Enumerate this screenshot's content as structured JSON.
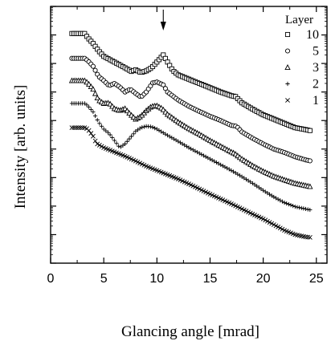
{
  "chart_data": {
    "type": "scatter",
    "xlabel": "Glancing angle [mrad]",
    "ylabel": "Intensity [arb. units]",
    "xlim": [
      0,
      26
    ],
    "x_ticks": [
      "0",
      "5",
      "10",
      "15",
      "20",
      "25"
    ],
    "y_scale": "log",
    "legend_title": "Layer",
    "legend_position": "top-right",
    "annotation": {
      "type": "arrow",
      "x": 10.6,
      "series": "10"
    },
    "series": [
      {
        "name": "10",
        "marker": "square",
        "points": [
          [
            2,
            9.05
          ],
          [
            3.2,
            9.05
          ],
          [
            3.5,
            8.9
          ],
          [
            4,
            8.7
          ],
          [
            4.5,
            8.45
          ],
          [
            5,
            8.25
          ],
          [
            6,
            8.05
          ],
          [
            7,
            7.85
          ],
          [
            7.6,
            7.72
          ],
          [
            8,
            7.78
          ],
          [
            8.5,
            7.68
          ],
          [
            9,
            7.74
          ],
          [
            9.5,
            7.85
          ],
          [
            10,
            8.05
          ],
          [
            10.6,
            8.3
          ],
          [
            11,
            8.05
          ],
          [
            11.5,
            7.75
          ],
          [
            12,
            7.6
          ],
          [
            13,
            7.45
          ],
          [
            14,
            7.3
          ],
          [
            15,
            7.15
          ],
          [
            16,
            7.0
          ],
          [
            17,
            6.87
          ],
          [
            17.4,
            6.84
          ],
          [
            18,
            6.62
          ],
          [
            19,
            6.4
          ],
          [
            20,
            6.2
          ],
          [
            21,
            6.05
          ],
          [
            22,
            5.9
          ],
          [
            23,
            5.75
          ],
          [
            24,
            5.68
          ],
          [
            24.5,
            5.64
          ]
        ]
      },
      {
        "name": "5",
        "marker": "circle",
        "points": [
          [
            2,
            8.18
          ],
          [
            3.2,
            8.18
          ],
          [
            3.5,
            8.1
          ],
          [
            4,
            7.9
          ],
          [
            4.5,
            7.55
          ],
          [
            5,
            7.4
          ],
          [
            5.5,
            7.22
          ],
          [
            6,
            7.3
          ],
          [
            6.5,
            7.18
          ],
          [
            7,
            7.0
          ],
          [
            7.5,
            7.1
          ],
          [
            8,
            6.95
          ],
          [
            8.5,
            6.82
          ],
          [
            9,
            7.0
          ],
          [
            9.6,
            7.32
          ],
          [
            10,
            7.35
          ],
          [
            10.6,
            7.25
          ],
          [
            11,
            7.0
          ],
          [
            12,
            6.72
          ],
          [
            13,
            6.5
          ],
          [
            14,
            6.32
          ],
          [
            15,
            6.15
          ],
          [
            16,
            6.0
          ],
          [
            17,
            5.83
          ],
          [
            17.5,
            5.8
          ],
          [
            18,
            5.6
          ],
          [
            19,
            5.38
          ],
          [
            20,
            5.18
          ],
          [
            21,
            5.0
          ],
          [
            22,
            4.88
          ],
          [
            23,
            4.73
          ],
          [
            24,
            4.62
          ],
          [
            24.5,
            4.58
          ]
        ]
      },
      {
        "name": "3",
        "marker": "triangle",
        "points": [
          [
            2,
            7.4
          ],
          [
            3.2,
            7.4
          ],
          [
            3.5,
            7.32
          ],
          [
            4,
            7.1
          ],
          [
            4.5,
            6.72
          ],
          [
            5,
            6.6
          ],
          [
            5.5,
            6.62
          ],
          [
            6,
            6.42
          ],
          [
            6.5,
            6.35
          ],
          [
            7,
            6.42
          ],
          [
            7.5,
            6.22
          ],
          [
            8,
            6.05
          ],
          [
            8.5,
            6.15
          ],
          [
            9,
            6.35
          ],
          [
            9.5,
            6.5
          ],
          [
            10,
            6.52
          ],
          [
            10.5,
            6.42
          ],
          [
            11,
            6.22
          ],
          [
            12,
            5.95
          ],
          [
            13,
            5.72
          ],
          [
            14,
            5.52
          ],
          [
            15,
            5.3
          ],
          [
            16,
            5.1
          ],
          [
            17,
            4.9
          ],
          [
            17.3,
            4.85
          ],
          [
            18,
            4.65
          ],
          [
            19,
            4.42
          ],
          [
            20,
            4.22
          ],
          [
            21,
            4.05
          ],
          [
            22,
            3.92
          ],
          [
            23,
            3.8
          ],
          [
            24,
            3.72
          ],
          [
            24.5,
            3.68
          ]
        ]
      },
      {
        "name": "2",
        "marker": "plus",
        "points": [
          [
            2,
            6.6
          ],
          [
            3.2,
            6.6
          ],
          [
            3.5,
            6.52
          ],
          [
            4,
            6.3
          ],
          [
            4.5,
            5.95
          ],
          [
            5,
            5.7
          ],
          [
            5.5,
            5.55
          ],
          [
            6,
            5.3
          ],
          [
            6.5,
            5.05
          ],
          [
            7,
            5.18
          ],
          [
            7.5,
            5.4
          ],
          [
            8,
            5.62
          ],
          [
            8.5,
            5.75
          ],
          [
            9,
            5.8
          ],
          [
            9.5,
            5.78
          ],
          [
            10,
            5.7
          ],
          [
            11,
            5.48
          ],
          [
            12,
            5.27
          ],
          [
            13,
            5.05
          ],
          [
            14,
            4.85
          ],
          [
            15,
            4.65
          ],
          [
            16,
            4.45
          ],
          [
            17,
            4.25
          ],
          [
            18,
            4.03
          ],
          [
            19,
            3.8
          ],
          [
            20,
            3.55
          ],
          [
            21,
            3.32
          ],
          [
            22,
            3.12
          ],
          [
            23,
            2.98
          ],
          [
            24,
            2.9
          ],
          [
            24.5,
            2.86
          ]
        ]
      },
      {
        "name": "1",
        "marker": "cross",
        "points": [
          [
            2,
            5.75
          ],
          [
            3.2,
            5.75
          ],
          [
            3.5,
            5.7
          ],
          [
            4,
            5.45
          ],
          [
            4.3,
            5.2
          ],
          [
            5,
            5.05
          ],
          [
            6,
            4.9
          ],
          [
            7,
            4.75
          ],
          [
            8,
            4.58
          ],
          [
            9,
            4.4
          ],
          [
            10,
            4.25
          ],
          [
            11,
            4.1
          ],
          [
            12,
            3.95
          ],
          [
            13,
            3.78
          ],
          [
            14,
            3.6
          ],
          [
            15,
            3.42
          ],
          [
            16,
            3.25
          ],
          [
            17,
            3.08
          ],
          [
            18,
            2.9
          ],
          [
            19,
            2.72
          ],
          [
            20,
            2.55
          ],
          [
            21,
            2.35
          ],
          [
            22,
            2.15
          ],
          [
            23,
            2.0
          ],
          [
            24,
            1.92
          ],
          [
            24.5,
            1.9
          ]
        ]
      }
    ]
  }
}
